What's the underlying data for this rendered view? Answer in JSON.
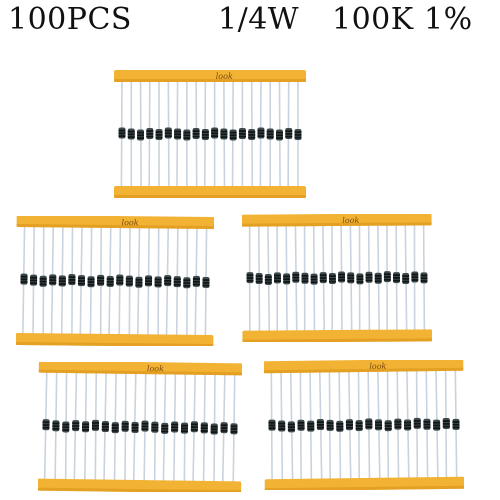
{
  "title": {
    "quantity": "100PCS",
    "power": "1/4W",
    "resistance": "100K",
    "tolerance": "1%"
  },
  "tape_text": "look",
  "colors": {
    "tape": "#f2b233",
    "tape_dark": "#d89418",
    "lead": "#c9d3dd",
    "body": "#3c4a4e",
    "band": "#121515"
  },
  "strips": [
    {
      "id": "strip-top",
      "resistors": 20
    },
    {
      "id": "strip-mid-left",
      "resistors": 20
    },
    {
      "id": "strip-mid-right",
      "resistors": 20
    },
    {
      "id": "strip-bottom-left",
      "resistors": 20
    },
    {
      "id": "strip-bottom-right",
      "resistors": 20
    }
  ]
}
